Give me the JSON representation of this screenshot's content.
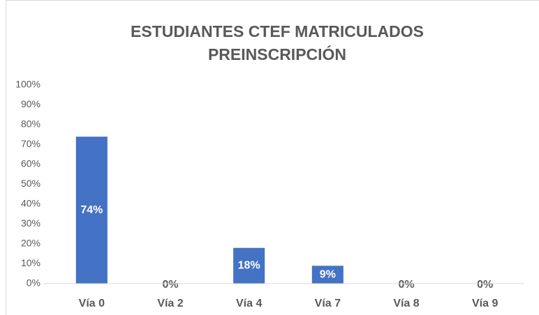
{
  "chart_data": {
    "type": "bar",
    "title": [
      "ESTUDIANTES CTEF MATRICULADOS",
      "PREINSCRIPCIÓN"
    ],
    "categories": [
      "Vía 0",
      "Vía 2",
      "Vía 4",
      "Vía 7",
      "Vía 8",
      "Vía 9"
    ],
    "values": [
      74,
      0,
      18,
      9,
      0,
      0
    ],
    "value_labels": [
      "74%",
      "0%",
      "18%",
      "9%",
      "0%",
      "0%"
    ],
    "color": "#4472c4",
    "ylim": [
      0,
      100
    ],
    "yticks": [
      {
        "value": 0,
        "label": "0%"
      },
      {
        "value": 10,
        "label": "10%"
      },
      {
        "value": 20,
        "label": "20%"
      },
      {
        "value": 30,
        "label": "30%"
      },
      {
        "value": 40,
        "label": "40%"
      },
      {
        "value": 50,
        "label": "50%"
      },
      {
        "value": 60,
        "label": "60%"
      },
      {
        "value": 70,
        "label": "70%"
      },
      {
        "value": 80,
        "label": "80%"
      },
      {
        "value": 90,
        "label": "90%"
      },
      {
        "value": 100,
        "label": "100%"
      }
    ],
    "grid": false
  }
}
